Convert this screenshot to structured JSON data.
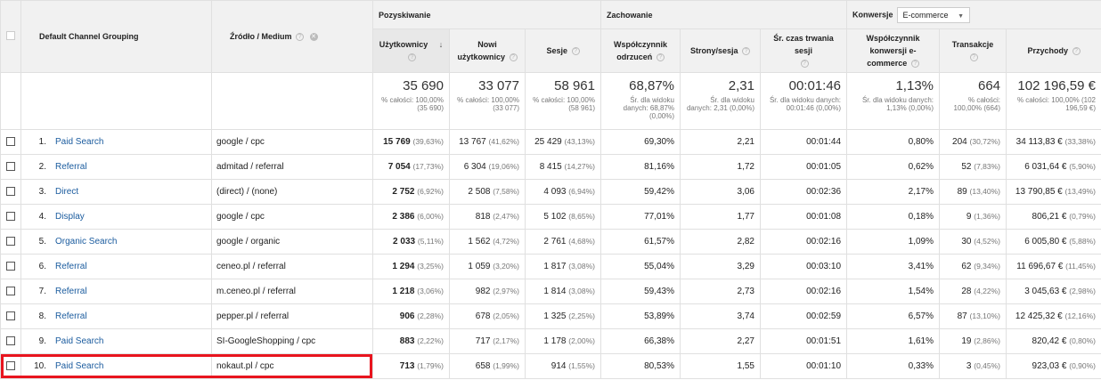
{
  "header": {
    "dim1": "Default Channel Grouping",
    "dim2": "Źródło / Medium",
    "groups": {
      "acquisition": "Pozyskiwanie",
      "behavior": "Zachowanie",
      "conversions": "Konwersje",
      "conversions_select": "E-commerce"
    },
    "cols": [
      "Użytkownicy",
      "Nowi użytkownicy",
      "Sesje",
      "Współczynnik odrzuceń",
      "Strony/sesja",
      "Śr. czas trwania sesji",
      "Współczynnik konwersji e-commerce",
      "Transakcje",
      "Przychody"
    ]
  },
  "totals": [
    {
      "v": "35 690",
      "s": "% całości: 100,00% (35 690)"
    },
    {
      "v": "33 077",
      "s": "% całości: 100,00% (33 077)"
    },
    {
      "v": "58 961",
      "s": "% całości: 100,00% (58 961)"
    },
    {
      "v": "68,87%",
      "s": "Śr. dla widoku danych: 68,87% (0,00%)"
    },
    {
      "v": "2,31",
      "s": "Śr. dla widoku danych: 2,31 (0,00%)"
    },
    {
      "v": "00:01:46",
      "s": "Śr. dla widoku danych: 00:01:46 (0,00%)"
    },
    {
      "v": "1,13%",
      "s": "Śr. dla widoku danych: 1,13% (0,00%)"
    },
    {
      "v": "664",
      "s": "% całości: 100,00% (664)"
    },
    {
      "v": "102 196,59 €",
      "s": "% całości: 100,00% (102 196,59 €)"
    }
  ],
  "rows": [
    {
      "idx": "1.",
      "channel": "Paid Search",
      "source": "google / cpc",
      "users": "15 769",
      "users_p": "(39,63%)",
      "new": "13 767",
      "new_p": "(41,62%)",
      "sess": "25 429",
      "sess_p": "(43,13%)",
      "bounce": "69,30%",
      "pps": "2,21",
      "dur": "00:01:44",
      "conv": "0,80%",
      "trans": "204",
      "trans_p": "(30,72%)",
      "rev": "34 113,83 €",
      "rev_p": "(33,38%)"
    },
    {
      "idx": "2.",
      "channel": "Referral",
      "source": "admitad / referral",
      "users": "7 054",
      "users_p": "(17,73%)",
      "new": "6 304",
      "new_p": "(19,06%)",
      "sess": "8 415",
      "sess_p": "(14,27%)",
      "bounce": "81,16%",
      "pps": "1,72",
      "dur": "00:01:05",
      "conv": "0,62%",
      "trans": "52",
      "trans_p": "(7,83%)",
      "rev": "6 031,64 €",
      "rev_p": "(5,90%)"
    },
    {
      "idx": "3.",
      "channel": "Direct",
      "source": "(direct) / (none)",
      "users": "2 752",
      "users_p": "(6,92%)",
      "new": "2 508",
      "new_p": "(7,58%)",
      "sess": "4 093",
      "sess_p": "(6,94%)",
      "bounce": "59,42%",
      "pps": "3,06",
      "dur": "00:02:36",
      "conv": "2,17%",
      "trans": "89",
      "trans_p": "(13,40%)",
      "rev": "13 790,85 €",
      "rev_p": "(13,49%)"
    },
    {
      "idx": "4.",
      "channel": "Display",
      "source": "google / cpc",
      "users": "2 386",
      "users_p": "(6,00%)",
      "new": "818",
      "new_p": "(2,47%)",
      "sess": "5 102",
      "sess_p": "(8,65%)",
      "bounce": "77,01%",
      "pps": "1,77",
      "dur": "00:01:08",
      "conv": "0,18%",
      "trans": "9",
      "trans_p": "(1,36%)",
      "rev": "806,21 €",
      "rev_p": "(0,79%)"
    },
    {
      "idx": "5.",
      "channel": "Organic Search",
      "source": "google / organic",
      "users": "2 033",
      "users_p": "(5,11%)",
      "new": "1 562",
      "new_p": "(4,72%)",
      "sess": "2 761",
      "sess_p": "(4,68%)",
      "bounce": "61,57%",
      "pps": "2,82",
      "dur": "00:02:16",
      "conv": "1,09%",
      "trans": "30",
      "trans_p": "(4,52%)",
      "rev": "6 005,80 €",
      "rev_p": "(5,88%)"
    },
    {
      "idx": "6.",
      "channel": "Referral",
      "source": "ceneo.pl / referral",
      "users": "1 294",
      "users_p": "(3,25%)",
      "new": "1 059",
      "new_p": "(3,20%)",
      "sess": "1 817",
      "sess_p": "(3,08%)",
      "bounce": "55,04%",
      "pps": "3,29",
      "dur": "00:03:10",
      "conv": "3,41%",
      "trans": "62",
      "trans_p": "(9,34%)",
      "rev": "11 696,67 €",
      "rev_p": "(11,45%)"
    },
    {
      "idx": "7.",
      "channel": "Referral",
      "source": "m.ceneo.pl / referral",
      "users": "1 218",
      "users_p": "(3,06%)",
      "new": "982",
      "new_p": "(2,97%)",
      "sess": "1 814",
      "sess_p": "(3,08%)",
      "bounce": "59,43%",
      "pps": "2,73",
      "dur": "00:02:16",
      "conv": "1,54%",
      "trans": "28",
      "trans_p": "(4,22%)",
      "rev": "3 045,63 €",
      "rev_p": "(2,98%)"
    },
    {
      "idx": "8.",
      "channel": "Referral",
      "source": "pepper.pl / referral",
      "users": "906",
      "users_p": "(2,28%)",
      "new": "678",
      "new_p": "(2,05%)",
      "sess": "1 325",
      "sess_p": "(2,25%)",
      "bounce": "53,89%",
      "pps": "3,74",
      "dur": "00:02:59",
      "conv": "6,57%",
      "trans": "87",
      "trans_p": "(13,10%)",
      "rev": "12 425,32 €",
      "rev_p": "(12,16%)"
    },
    {
      "idx": "9.",
      "channel": "Paid Search",
      "source": "SI-GoogleShopping / cpc",
      "users": "883",
      "users_p": "(2,22%)",
      "new": "717",
      "new_p": "(2,17%)",
      "sess": "1 178",
      "sess_p": "(2,00%)",
      "bounce": "66,38%",
      "pps": "2,27",
      "dur": "00:01:51",
      "conv": "1,61%",
      "trans": "19",
      "trans_p": "(2,86%)",
      "rev": "820,42 €",
      "rev_p": "(0,80%)"
    },
    {
      "idx": "10.",
      "channel": "Paid Search",
      "source": "nokaut.pl / cpc",
      "users": "713",
      "users_p": "(1,79%)",
      "new": "658",
      "new_p": "(1,99%)",
      "sess": "914",
      "sess_p": "(1,55%)",
      "bounce": "80,53%",
      "pps": "1,55",
      "dur": "00:01:10",
      "conv": "0,33%",
      "trans": "3",
      "trans_p": "(0,45%)",
      "rev": "923,03 €",
      "rev_p": "(0,90%)"
    }
  ],
  "colors": {
    "link": "#1a5b9e",
    "highlight": "#e8141e",
    "header_bg": "#f1f1f1"
  }
}
